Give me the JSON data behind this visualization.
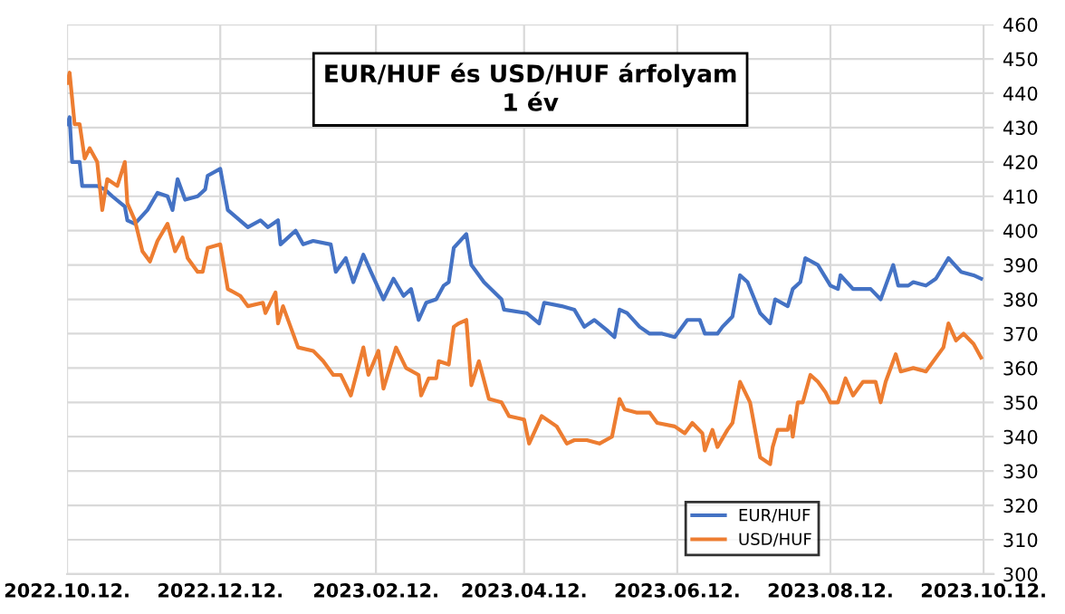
{
  "chart_data": {
    "type": "line",
    "title": "EUR/HUF és USD/HUF árfolyam\n1 év",
    "xlim": [
      "2022-10-12",
      "2023-10-16"
    ],
    "xticks": [
      {
        "value": "2022-10-12",
        "label": "2022.10.12."
      },
      {
        "value": "2022-12-12",
        "label": "2022.12.12."
      },
      {
        "value": "2023-02-12",
        "label": "2023.02.12."
      },
      {
        "value": "2023-04-12",
        "label": "2023.04.12."
      },
      {
        "value": "2023-06-12",
        "label": "2023.06.12."
      },
      {
        "value": "2023-08-12",
        "label": "2023.08.12."
      },
      {
        "value": "2023-10-12",
        "label": "2023.10.12."
      }
    ],
    "ylim": [
      300,
      460
    ],
    "yticks": [
      300,
      310,
      320,
      330,
      340,
      350,
      360,
      370,
      380,
      390,
      400,
      410,
      420,
      430,
      440,
      450,
      460
    ],
    "grid": true,
    "legend": "bottom right",
    "marker": "none",
    "line_style": "solid",
    "series": [
      {
        "name": "EUR/HUF",
        "color": "#4472c4",
        "x": [
          "2022-10-12",
          "2022-10-13",
          "2022-10-14",
          "2022-10-17",
          "2022-10-18",
          "2022-10-24",
          "2022-10-27",
          "2022-10-30",
          "2022-11-04",
          "2022-11-05",
          "2022-11-08",
          "2022-11-13",
          "2022-11-17",
          "2022-11-21",
          "2022-11-23",
          "2022-11-25",
          "2022-11-28",
          "2022-12-03",
          "2022-12-06",
          "2022-12-07",
          "2022-12-12",
          "2022-12-15",
          "2022-12-23",
          "2022-12-28",
          "2022-12-31",
          "2023-01-04",
          "2023-01-05",
          "2023-01-11",
          "2023-01-14",
          "2023-01-18",
          "2023-01-25",
          "2023-01-27",
          "2023-01-31",
          "2023-02-03",
          "2023-02-07",
          "2023-02-10",
          "2023-02-15",
          "2023-02-19",
          "2023-02-23",
          "2023-02-26",
          "2023-03-01",
          "2023-03-04",
          "2023-03-08",
          "2023-03-11",
          "2023-03-13",
          "2023-03-15",
          "2023-03-20",
          "2023-03-22",
          "2023-03-27",
          "2023-04-03",
          "2023-04-04",
          "2023-04-13",
          "2023-04-18",
          "2023-04-20",
          "2023-04-27",
          "2023-05-02",
          "2023-05-06",
          "2023-05-10",
          "2023-05-15",
          "2023-05-18",
          "2023-05-20",
          "2023-05-23",
          "2023-05-28",
          "2023-06-01",
          "2023-06-06",
          "2023-06-11",
          "2023-06-16",
          "2023-06-21",
          "2023-06-23",
          "2023-06-28",
          "2023-06-30",
          "2023-07-04",
          "2023-07-07",
          "2023-07-10",
          "2023-07-15",
          "2023-07-19",
          "2023-07-21",
          "2023-07-26",
          "2023-07-28",
          "2023-07-31",
          "2023-08-02",
          "2023-08-07",
          "2023-08-12",
          "2023-08-15",
          "2023-08-16",
          "2023-08-21",
          "2023-08-28",
          "2023-09-01",
          "2023-09-03",
          "2023-09-06",
          "2023-09-08",
          "2023-09-12",
          "2023-09-14",
          "2023-09-19",
          "2023-09-23",
          "2023-09-28",
          "2023-10-03",
          "2023-10-08",
          "2023-10-11"
        ],
        "values": [
          431,
          433,
          420,
          420,
          413,
          413,
          412,
          410,
          407,
          403,
          402,
          406,
          411,
          410,
          406,
          415,
          409,
          410,
          412,
          416,
          418,
          406,
          401,
          403,
          401,
          403,
          396,
          400,
          396,
          397,
          396,
          388,
          392,
          385,
          393,
          388,
          380,
          386,
          381,
          383,
          374,
          379,
          380,
          384,
          385,
          395,
          399,
          390,
          385,
          380,
          377,
          376,
          373,
          379,
          378,
          377,
          372,
          374,
          371,
          369,
          377,
          376,
          372,
          370,
          370,
          369,
          374,
          374,
          370,
          370,
          372,
          375,
          387,
          385,
          376,
          373,
          380,
          378,
          383,
          385,
          392,
          390,
          384,
          383,
          387,
          383,
          383,
          380,
          384,
          390,
          384,
          384,
          385,
          384,
          386,
          392,
          388,
          387,
          386
        ]
      },
      {
        "name": "USD/HUF",
        "color": "#ed7d31",
        "x": [
          "2022-10-12",
          "2022-10-13",
          "2022-10-15",
          "2022-10-17",
          "2022-10-19",
          "2022-10-21",
          "2022-10-24",
          "2022-10-26",
          "2022-10-28",
          "2022-11-01",
          "2022-11-04",
          "2022-11-05",
          "2022-11-08",
          "2022-11-11",
          "2022-11-14",
          "2022-11-17",
          "2022-11-21",
          "2022-11-24",
          "2022-11-27",
          "2022-11-29",
          "2022-12-03",
          "2022-12-05",
          "2022-12-07",
          "2022-12-12",
          "2022-12-15",
          "2022-12-20",
          "2022-12-23",
          "2022-12-29",
          "2022-12-30",
          "2023-01-03",
          "2023-01-04",
          "2023-01-06",
          "2023-01-12",
          "2023-01-18",
          "2023-01-22",
          "2023-01-26",
          "2023-01-29",
          "2023-02-02",
          "2023-02-07",
          "2023-02-09",
          "2023-02-13",
          "2023-02-15",
          "2023-02-20",
          "2023-02-24",
          "2023-03-01",
          "2023-03-02",
          "2023-03-05",
          "2023-03-08",
          "2023-03-09",
          "2023-03-13",
          "2023-03-15",
          "2023-03-17",
          "2023-03-20",
          "2023-03-22",
          "2023-03-25",
          "2023-03-29",
          "2023-04-03",
          "2023-04-06",
          "2023-04-12",
          "2023-04-14",
          "2023-04-19",
          "2023-04-25",
          "2023-04-29",
          "2023-05-02",
          "2023-05-07",
          "2023-05-12",
          "2023-05-17",
          "2023-05-20",
          "2023-05-22",
          "2023-05-27",
          "2023-06-01",
          "2023-06-04",
          "2023-06-11",
          "2023-06-15",
          "2023-06-18",
          "2023-06-22",
          "2023-06-23",
          "2023-06-26",
          "2023-06-28",
          "2023-07-02",
          "2023-07-04",
          "2023-07-07",
          "2023-07-11",
          "2023-07-15",
          "2023-07-19",
          "2023-07-20",
          "2023-07-22",
          "2023-07-26",
          "2023-07-27",
          "2023-07-28",
          "2023-07-30",
          "2023-08-01",
          "2023-08-04",
          "2023-08-07",
          "2023-08-10",
          "2023-08-12",
          "2023-08-15",
          "2023-08-18",
          "2023-08-21",
          "2023-08-25",
          "2023-08-30",
          "2023-09-01",
          "2023-09-03",
          "2023-09-07",
          "2023-09-09",
          "2023-09-14",
          "2023-09-19",
          "2023-09-26",
          "2023-09-28",
          "2023-10-01",
          "2023-10-04",
          "2023-10-08",
          "2023-10-11"
        ],
        "values": [
          443,
          446,
          431,
          431,
          421,
          424,
          420,
          406,
          415,
          413,
          420,
          408,
          403,
          394,
          391,
          397,
          402,
          394,
          398,
          392,
          388,
          388,
          395,
          396,
          383,
          381,
          378,
          379,
          376,
          382,
          373,
          378,
          366,
          365,
          362,
          358,
          358,
          352,
          366,
          358,
          365,
          354,
          366,
          360,
          358,
          352,
          357,
          357,
          362,
          361,
          372,
          373,
          374,
          355,
          362,
          351,
          350,
          346,
          345,
          338,
          346,
          343,
          338,
          339,
          339,
          338,
          340,
          351,
          348,
          347,
          347,
          344,
          343,
          341,
          344,
          341,
          336,
          342,
          337,
          342,
          344,
          356,
          350,
          334,
          332,
          337,
          342,
          342,
          346,
          340,
          350,
          350,
          358,
          356,
          353,
          350,
          350,
          357,
          352,
          356,
          356,
          350,
          356,
          364,
          359,
          360,
          359,
          366,
          373,
          368,
          370,
          367,
          363
        ]
      }
    ]
  }
}
